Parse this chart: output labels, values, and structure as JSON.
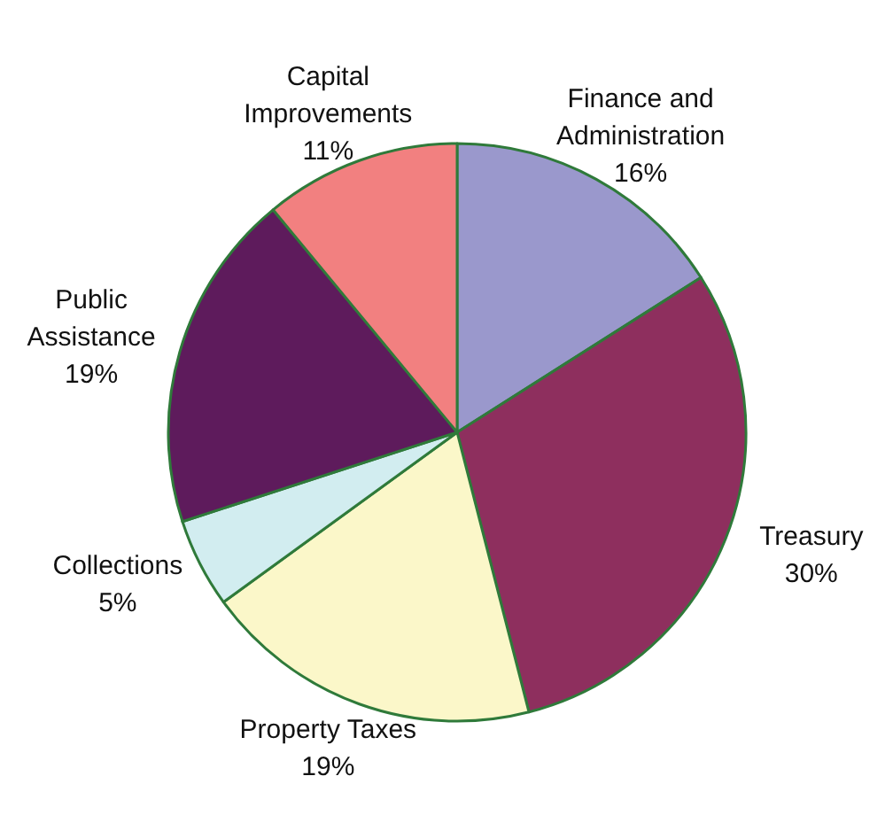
{
  "chart_data": {
    "type": "pie",
    "categories": [
      "Finance and\nAdministration",
      "Treasury",
      "Property Taxes",
      "Collections",
      "Public\nAssistance",
      "Capital\nImprovements"
    ],
    "values": [
      16,
      30,
      19,
      5,
      19,
      11
    ],
    "value_labels": [
      "16%",
      "30%",
      "19%",
      "5%",
      "19%",
      "11%"
    ],
    "colors": [
      "#9a98cc",
      "#8e2f5e",
      "#fbf7c9",
      "#d2edf0",
      "#5e1b5c",
      "#f28080"
    ]
  }
}
